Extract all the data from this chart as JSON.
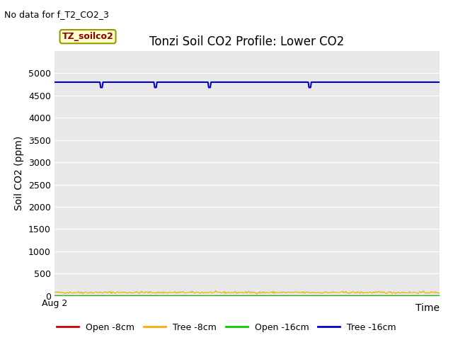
{
  "title": "Tonzi Soil CO2 Profile: Lower CO2",
  "no_data_text": "No data for f_T2_CO2_3",
  "xlabel": "Time",
  "ylabel": "Soil CO2 (ppm)",
  "ylim": [
    0,
    5500
  ],
  "yticks": [
    0,
    500,
    1000,
    1500,
    2000,
    2500,
    3000,
    3500,
    4000,
    4500,
    5000
  ],
  "xticklabel": "Aug 2",
  "annotation_label": "TZ_soilco2",
  "bg_color": "#e8e8e8",
  "lines": {
    "open_8cm": {
      "color": "#cc0000",
      "value": 3,
      "label": "Open -8cm"
    },
    "tree_8cm": {
      "color": "#ffaa00",
      "value": 75,
      "label": "Tree -8cm"
    },
    "open_16cm": {
      "color": "#00cc00",
      "value": 1,
      "label": "Open -16cm"
    },
    "tree_16cm": {
      "color": "#0000cc",
      "value": 4800,
      "label": "Tree -16cm"
    }
  },
  "n_points": 500,
  "title_fontsize": 12,
  "axis_label_fontsize": 10,
  "tick_fontsize": 9,
  "legend_fontsize": 9
}
